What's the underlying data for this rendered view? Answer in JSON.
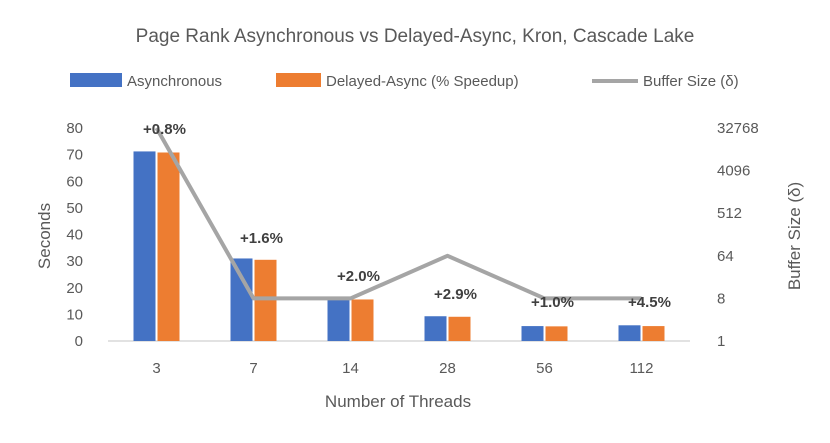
{
  "chart_data": {
    "type": "bar",
    "title": "Page Rank Asynchronous vs Delayed-Async, Kron, Cascade Lake",
    "xlabel": "Number of Threads",
    "ylabel": "Seconds",
    "y2label": "Buffer Size (δ)",
    "categories": [
      "3",
      "7",
      "14",
      "28",
      "56",
      "112"
    ],
    "ylim": [
      0,
      80
    ],
    "y_ticks": [
      "0",
      "10",
      "20",
      "30",
      "40",
      "50",
      "60",
      "70",
      "80"
    ],
    "y2_scale": "log2",
    "y2_ticks": [
      "1",
      "8",
      "64",
      "512",
      "4096",
      "32768"
    ],
    "legend_position": "top",
    "grid": false,
    "series": [
      {
        "name": "Asynchronous",
        "kind": "bar",
        "color": "#4472C4",
        "values": [
          71.2,
          31.0,
          15.9,
          9.3,
          5.6,
          5.9
        ]
      },
      {
        "name": "Delayed-Async (% Speedup)",
        "kind": "bar",
        "color": "#ED7D31",
        "values": [
          70.8,
          30.5,
          15.6,
          9.1,
          5.5,
          5.6
        ],
        "labels": [
          "+0.8%",
          "+1.6%",
          "+2.0%",
          "+2.9%",
          "+1.0%",
          "+4.5%"
        ]
      },
      {
        "name": "Buffer Size (δ)",
        "kind": "line",
        "axis": "secondary",
        "color": "#A5A5A5",
        "values": [
          32768,
          8,
          8,
          64,
          8,
          8
        ]
      }
    ]
  }
}
